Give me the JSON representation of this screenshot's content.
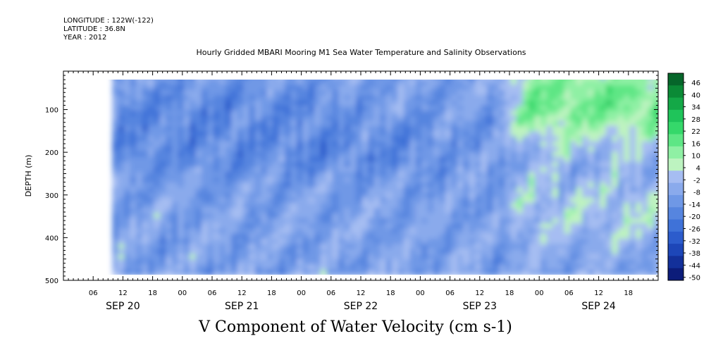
{
  "header": {
    "longitude": "LONGITUDE : 122W(-122)",
    "latitude": "LATITUDE : 36.8N",
    "year": "YEAR : 2012"
  },
  "chart_data": {
    "type": "heatmap",
    "title": "Hourly Gridded MBARI Mooring M1 Sea Water Temperature and Salinity Observations",
    "variable_label": "V Component of Water Velocity (cm s-1)",
    "ylabel": "DEPTH (m)",
    "x_hour_ticks": [
      "06",
      "12",
      "18",
      "00",
      "06",
      "12",
      "18",
      "00",
      "06",
      "12",
      "18",
      "00",
      "06",
      "12",
      "18",
      "00",
      "06",
      "12",
      "18"
    ],
    "x_day_labels": [
      "SEP 20",
      "SEP 21",
      "SEP 22",
      "SEP 23",
      "SEP 24"
    ],
    "y_ticks": [
      100,
      200,
      300,
      400,
      500
    ],
    "y_range": [
      500,
      10
    ],
    "x_range_hours": [
      0,
      120
    ],
    "data_time_start_hours": 10,
    "data_depth_range": [
      20,
      485
    ],
    "colorbar_levels": [
      -50,
      -44,
      -38,
      -32,
      -26,
      -20,
      -14,
      -8,
      -2,
      4,
      10,
      16,
      22,
      28,
      34,
      40,
      46
    ],
    "colorbar_tick_labels": [
      "46",
      "40",
      "34",
      "28",
      "22",
      "16",
      "10",
      "4",
      "-2",
      "-8",
      "-14",
      "-20",
      "-26",
      "-32",
      "-38",
      "-44",
      "-50"
    ],
    "colorbar_colors": [
      "#0c1c7a",
      "#13309a",
      "#1d46b8",
      "#2c5ccc",
      "#3f72d8",
      "#5685df",
      "#6f98e6",
      "#8aaaec",
      "#a6bdf2",
      "#bdf3c0",
      "#8ff0a4",
      "#5ee685",
      "#35d86a",
      "#1fc45a",
      "#14a847",
      "#0b8a36",
      "#06662a"
    ],
    "summary_field": {
      "background_level_cm_s": -8,
      "strong_southward_zone": "150-250 m, SEP 20-22",
      "strong_northward_zone": "surface-250 m, SEP 24"
    }
  }
}
